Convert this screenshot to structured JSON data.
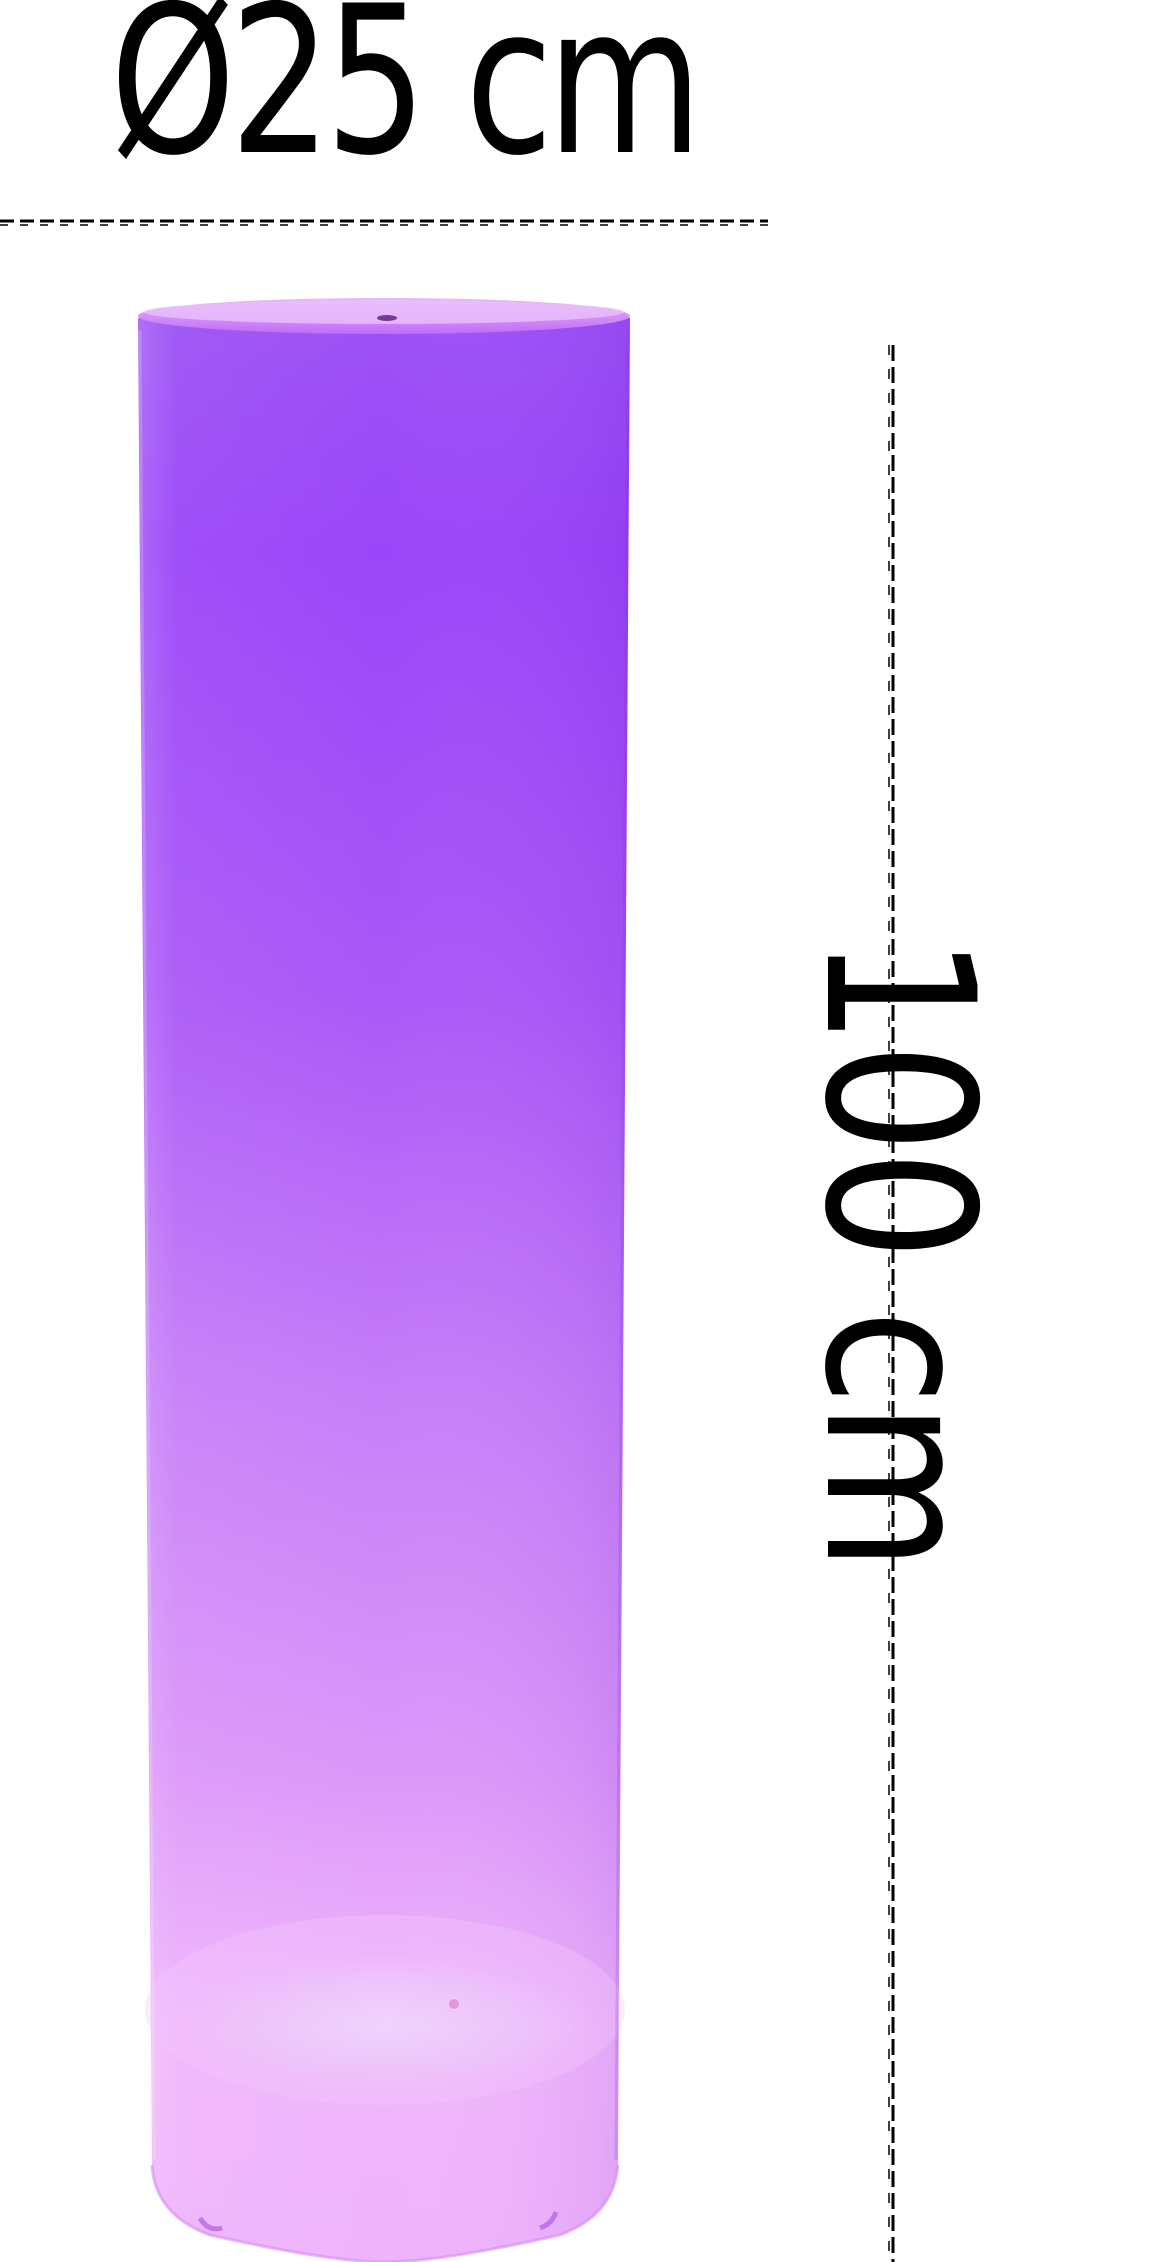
{
  "product": {
    "name": "cylinder-led-lamp",
    "glow_colors": {
      "top": "#9a45f7",
      "middle": "#c67df8",
      "bottom": "#f0b6fb",
      "base_highlight": "#ecd9fb"
    }
  },
  "dimensions": {
    "diameter_label": "Ø25 cm",
    "height_label": "100 cm"
  }
}
